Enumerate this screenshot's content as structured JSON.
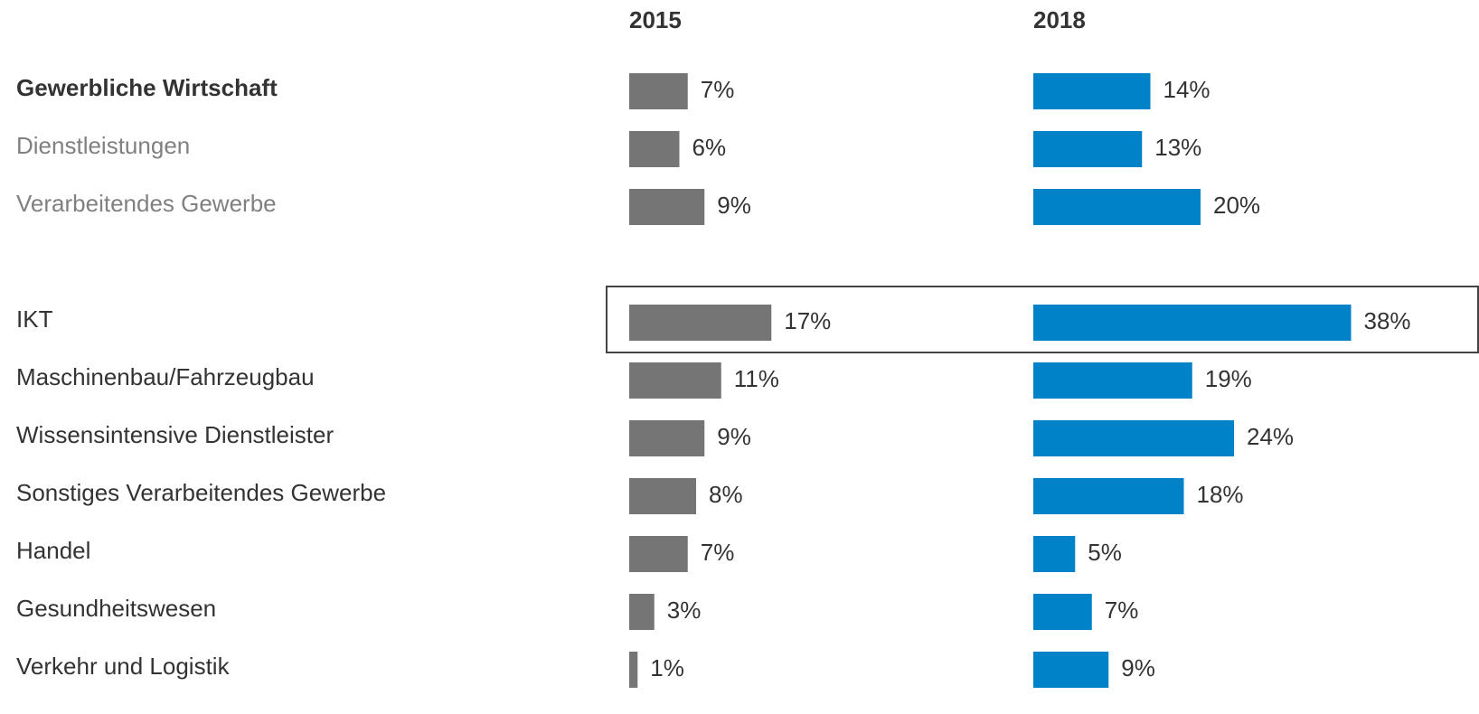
{
  "chart_data": {
    "type": "bar",
    "categories": [
      "Gewerbliche Wirtschaft",
      "Dienstleistungen",
      "Verarbeitendes Gewerbe",
      "IKT",
      "Maschinenbau/Fahrzeugbau",
      "Wissensintensive Dienstleister",
      "Sonstiges Verarbeitendes Gewerbe",
      "Handel",
      "Gesundheitswesen",
      "Verkehr und Logistik"
    ],
    "series": [
      {
        "name": "2015",
        "color": "#757575",
        "values": [
          7,
          6,
          9,
          17,
          11,
          9,
          8,
          7,
          3,
          1
        ],
        "value_labels": [
          "7%",
          "6%",
          "9%",
          "17%",
          "11%",
          "9%",
          "8%",
          "7%",
          "3%",
          "1%"
        ]
      },
      {
        "name": "2018",
        "color": "#0082c8",
        "values": [
          14,
          13,
          20,
          38,
          19,
          24,
          18,
          5,
          7,
          9
        ],
        "value_labels": [
          "14%",
          "13%",
          "20%",
          "38%",
          "19%",
          "24%",
          "18%",
          "5%",
          "7%",
          "9%"
        ]
      }
    ]
  }
}
